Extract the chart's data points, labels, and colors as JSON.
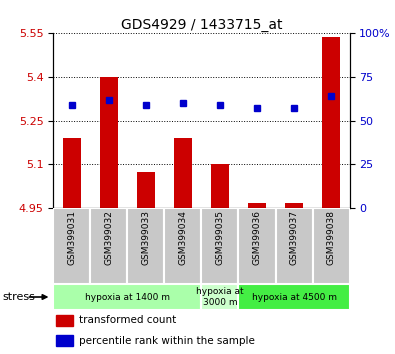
{
  "title": "GDS4929 / 1433715_at",
  "samples": [
    "GSM399031",
    "GSM399032",
    "GSM399033",
    "GSM399034",
    "GSM399035",
    "GSM399036",
    "GSM399037",
    "GSM399038"
  ],
  "transformed_counts": [
    5.19,
    5.4,
    5.075,
    5.19,
    5.1,
    4.968,
    4.968,
    5.535
  ],
  "percentile_ranks": [
    59,
    62,
    59,
    60,
    59,
    57,
    57,
    64
  ],
  "ylim_left": [
    4.95,
    5.55
  ],
  "ylim_right": [
    0,
    100
  ],
  "yticks_left": [
    4.95,
    5.1,
    5.25,
    5.4,
    5.55
  ],
  "yticks_right": [
    0,
    25,
    50,
    75,
    100
  ],
  "left_tick_labels": [
    "4.95",
    "5.1",
    "5.25",
    "5.4",
    "5.55"
  ],
  "right_tick_labels": [
    "0",
    "25",
    "50",
    "75",
    "100%"
  ],
  "bar_color": "#cc0000",
  "dot_color": "#0000cc",
  "groups": [
    {
      "label": "hypoxia at 1400 m",
      "samples": [
        0,
        1,
        2,
        3
      ],
      "color": "#aaffaa"
    },
    {
      "label": "hypoxia at\n3000 m",
      "samples": [
        4
      ],
      "color": "#ccffcc"
    },
    {
      "label": "hypoxia at 4500 m",
      "samples": [
        5,
        6,
        7
      ],
      "color": "#44ee44"
    }
  ],
  "legend_red_label": "transformed count",
  "legend_blue_label": "percentile rank within the sample",
  "stress_label": "stress",
  "background_color": "#ffffff",
  "plot_bg_color": "#ffffff",
  "tick_label_color_left": "#cc0000",
  "tick_label_color_right": "#0000cc",
  "sample_bg_color": "#c8c8c8",
  "sample_divider_color": "#ffffff"
}
